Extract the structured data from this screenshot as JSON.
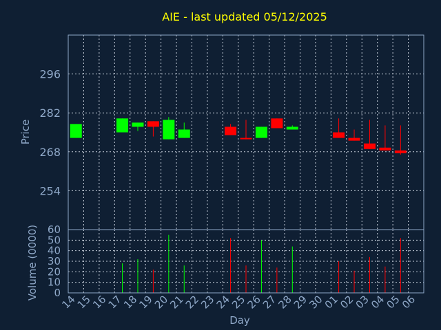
{
  "chart_data": {
    "type": "candlestick",
    "title": "AIE - last updated 05/12/2025",
    "xlabel": "Day",
    "price_panel": {
      "ylabel": "Price",
      "ylim": [
        240,
        310
      ],
      "yticks": [
        254,
        268,
        282,
        296
      ],
      "grid": true
    },
    "volume_panel": {
      "ylabel": "Volume (0000)",
      "ylim": [
        0,
        60
      ],
      "yticks": [
        0,
        10,
        20,
        30,
        40,
        50,
        60
      ],
      "grid": true
    },
    "x_tick_labels": [
      "14",
      "15",
      "16",
      "17",
      "18",
      "19",
      "20",
      "21",
      "22",
      "23",
      "24",
      "25",
      "26",
      "27",
      "28",
      "29",
      "30",
      "01",
      "02",
      "03",
      "04",
      "05",
      "06"
    ],
    "colors": {
      "up": "#00ff00",
      "down": "#ff0000"
    },
    "candles": [
      {
        "i": 0,
        "open": 273.0,
        "close": 278.0,
        "high": 278.0,
        "low": 273.0,
        "volume": 0
      },
      {
        "i": 3,
        "open": 275.0,
        "close": 280.0,
        "high": 280.0,
        "low": 275.0,
        "volume": 28
      },
      {
        "i": 4,
        "open": 277.0,
        "close": 278.5,
        "high": 278.5,
        "low": 275.5,
        "volume": 32
      },
      {
        "i": 5,
        "open": 279.0,
        "close": 277.0,
        "high": 279.0,
        "low": 273.5,
        "volume": 22
      },
      {
        "i": 6,
        "open": 272.5,
        "close": 279.5,
        "high": 280.5,
        "low": 272.5,
        "volume": 55
      },
      {
        "i": 7,
        "open": 273.0,
        "close": 276.0,
        "high": 278.5,
        "low": 273.0,
        "volume": 26
      },
      {
        "i": 10,
        "open": 277.0,
        "close": 274.0,
        "high": 278.0,
        "low": 274.0,
        "volume": 52
      },
      {
        "i": 11,
        "open": 273.0,
        "close": 272.5,
        "high": 279.5,
        "low": 272.5,
        "volume": 26
      },
      {
        "i": 12,
        "open": 273.0,
        "close": 277.0,
        "high": 277.0,
        "low": 273.0,
        "volume": 50
      },
      {
        "i": 13,
        "open": 280.0,
        "close": 276.5,
        "high": 280.0,
        "low": 276.5,
        "volume": 24
      },
      {
        "i": 14,
        "open": 276.0,
        "close": 277.0,
        "high": 277.5,
        "low": 276.0,
        "volume": 44
      },
      {
        "i": 17,
        "open": 275.0,
        "close": 273.0,
        "high": 280.0,
        "low": 273.0,
        "volume": 30
      },
      {
        "i": 18,
        "open": 273.0,
        "close": 272.0,
        "high": 276.0,
        "low": 272.0,
        "volume": 21
      },
      {
        "i": 19,
        "open": 271.0,
        "close": 269.0,
        "high": 279.5,
        "low": 269.0,
        "volume": 34
      },
      {
        "i": 20,
        "open": 269.5,
        "close": 268.5,
        "high": 277.5,
        "low": 268.5,
        "volume": 25
      },
      {
        "i": 21,
        "open": 268.5,
        "close": 267.5,
        "high": 277.5,
        "low": 267.0,
        "volume": 52
      }
    ]
  }
}
